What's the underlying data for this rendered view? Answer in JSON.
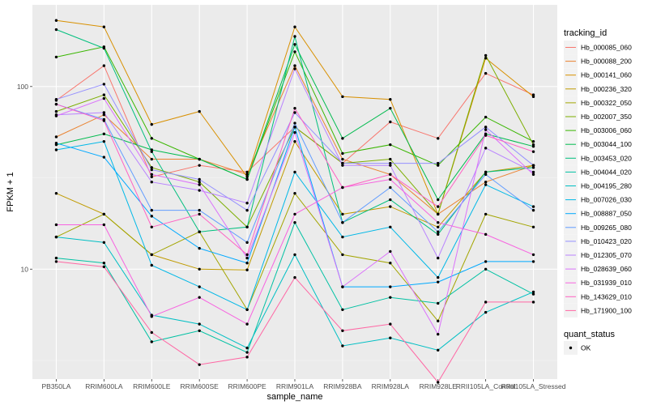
{
  "chart_data": {
    "type": "line",
    "title": "",
    "xlabel": "sample_name",
    "ylabel": "FPKM + 1",
    "y_scale": "log10",
    "ylim": [
      2.5,
      280
    ],
    "yticks": [
      {
        "value": 10,
        "label": "10"
      },
      {
        "value": 100,
        "label": "100"
      }
    ],
    "grid": true,
    "categories": [
      "PB350LA",
      "RRIM600LA",
      "RRIM600LE",
      "RRIM600SE",
      "RRIM600PE",
      "RRIM901LA",
      "RRIM928BA",
      "RRIM928LA",
      "RRIM928LE",
      "RRII105LA_Control",
      "RRII105LA_Stressed"
    ],
    "legend_color": {
      "title": "tracking_id",
      "placement": "right"
    },
    "legend_shape": {
      "title": "quant_status",
      "entries": [
        {
          "label": "OK",
          "symbol": "point"
        }
      ]
    },
    "series": [
      {
        "name": "Hb_000085_060",
        "color": "#F8766D",
        "values": [
          84,
          130,
          32,
          37,
          34,
          60,
          38,
          64,
          52,
          118,
          90
        ]
      },
      {
        "name": "Hb_000088_200",
        "color": "#EA8331",
        "values": [
          53,
          70,
          40,
          40,
          33,
          130,
          40,
          33,
          20,
          30,
          37
        ]
      },
      {
        "name": "Hb_000141_060",
        "color": "#D89000",
        "values": [
          230,
          212,
          62,
          73,
          32,
          212,
          88,
          85,
          20,
          143,
          88
        ]
      },
      {
        "name": "Hb_000236_320",
        "color": "#C09B00",
        "values": [
          26,
          20,
          12,
          10,
          9.9,
          50,
          20,
          22,
          17,
          34,
          37
        ]
      },
      {
        "name": "Hb_000322_050",
        "color": "#A3A500",
        "values": [
          15,
          20,
          12,
          16,
          6,
          26,
          12,
          10.8,
          5.2,
          20,
          17
        ]
      },
      {
        "name": "Hb_002007_350",
        "color": "#7CAE00",
        "values": [
          73,
          90,
          36,
          30,
          17,
          60,
          38,
          40,
          20,
          148,
          48
        ]
      },
      {
        "name": "Hb_003006_060",
        "color": "#39B600",
        "values": [
          145,
          165,
          52,
          40,
          31,
          155,
          43,
          48,
          37,
          68,
          50
        ]
      },
      {
        "name": "Hb_003044_100",
        "color": "#00BB4E",
        "values": [
          48,
          55,
          45,
          40,
          31,
          170,
          52,
          76,
          24,
          55,
          47
        ]
      },
      {
        "name": "Hb_003453_020",
        "color": "#00BF7D",
        "values": [
          205,
          162,
          44,
          16,
          17,
          188,
          18,
          24,
          15.5,
          34,
          36
        ]
      },
      {
        "name": "Hb_004044_020",
        "color": "#00C1A3",
        "values": [
          11.5,
          10.8,
          4,
          4.6,
          3.5,
          18,
          6,
          7,
          6.5,
          10,
          7.3
        ]
      },
      {
        "name": "Hb_004195_280",
        "color": "#00BFC4",
        "values": [
          15,
          14,
          5.6,
          5,
          3.7,
          12,
          3.8,
          4.2,
          3.6,
          5.8,
          7.5
        ]
      },
      {
        "name": "Hb_007026_030",
        "color": "#00B8E7",
        "values": [
          45,
          50,
          10.5,
          8,
          6,
          34,
          15,
          17,
          9,
          29,
          22
        ]
      },
      {
        "name": "Hb_008887_050",
        "color": "#00A9FF",
        "values": [
          49,
          41,
          19.5,
          13,
          10.8,
          60,
          8,
          8,
          8.5,
          11,
          11
        ]
      },
      {
        "name": "Hb_009265_080",
        "color": "#619CFF",
        "values": [
          80,
          66,
          21,
          21,
          14,
          63,
          18,
          28,
          16,
          33,
          21
        ]
      },
      {
        "name": "Hb_010423_020",
        "color": "#9590FF",
        "values": [
          85,
          103,
          35,
          31,
          21,
          72,
          38,
          38,
          38,
          60,
          37
        ]
      },
      {
        "name": "Hb_012305_070",
        "color": "#B983FF",
        "values": [
          70,
          72,
          30,
          27,
          23,
          125,
          37,
          37,
          11.5,
          46,
          34
        ]
      },
      {
        "name": "Hb_028639_060",
        "color": "#DB72FB",
        "values": [
          69,
          86,
          33,
          29,
          11.5,
          56,
          8,
          12.5,
          4.4,
          58,
          33
        ]
      },
      {
        "name": "Hb_031939_010",
        "color": "#F763E0",
        "values": [
          17.5,
          17.5,
          5.5,
          7,
          5,
          20,
          28,
          31,
          18,
          15.5,
          12
        ]
      },
      {
        "name": "Hb_143629_010",
        "color": "#FF61C3",
        "values": [
          80,
          65,
          17,
          20,
          12,
          76,
          28,
          33,
          22,
          54,
          44
        ]
      },
      {
        "name": "Hb_171900_100",
        "color": "#FF67A4",
        "values": [
          11,
          10.3,
          4.5,
          3,
          3.3,
          9,
          4.6,
          5,
          2.4,
          6.6,
          6.6
        ]
      }
    ]
  }
}
